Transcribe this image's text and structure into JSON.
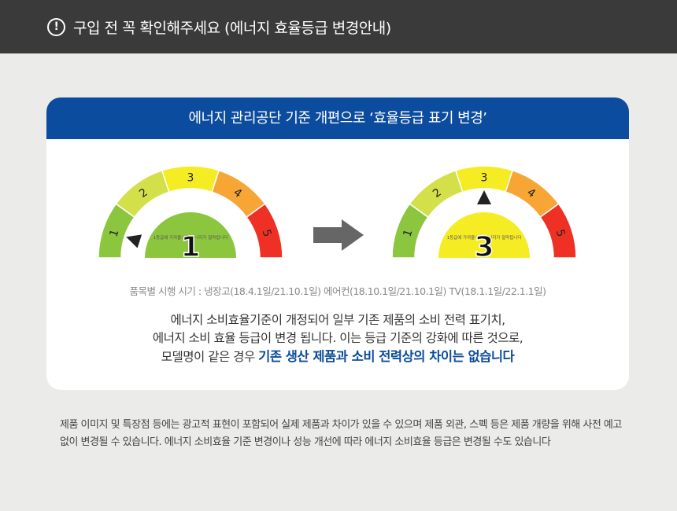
{
  "notice": {
    "icon": "exclamation-circle-icon",
    "title": "구입 전 꼭 확인해주세요 (에너지 효율등급 변경안내)"
  },
  "card": {
    "heading": "에너지 관리공단 기준 개편으로 ‘효율등급 표기 변경’",
    "gauge_before": {
      "grade": "1",
      "caption": "1등급에 가까울수록 에너지가 절약됩니다",
      "pointer_grade": 1
    },
    "gauge_after": {
      "grade": "3",
      "caption": "1등급에 가까울수록 에너지가 절약됩니다",
      "pointer_grade": 3
    },
    "segments": [
      "1",
      "2",
      "3",
      "4",
      "5"
    ],
    "segment_colors": [
      "#8cc63f",
      "#d4e04a",
      "#f6ec23",
      "#f7a535",
      "#ee3124"
    ],
    "arrow_icon": "arrow-right-icon",
    "period": "품목별 시행 시기 : 냉장고(18.4.1일/21.10.1일) 에어컨(18.10.1일/21.10.1일) TV(18.1.1일/22.1.1일)",
    "desc_line1": "에너지 소비효율기준이 개정되어 일부 기존 제품의 소비 전력 표기치,",
    "desc_line2": "에너지 소비 효율 등급이 변경 됩니다. 이는 등급 기준의 강화에 따른 것으로,",
    "desc_line3": "모델명이 같은 경우 ",
    "desc_emphasis": "기존 생산 제품과 소비 전력상의 차이는 없습니다"
  },
  "footnote": "제품 이미지 및 특장점 등에는 광고적 표현이 포함되어 실제 제품과 차이가 있을 수 있으며 제품 외관, 스펙 등은 제품 개량을 위해 사전 예고 없이 변경될 수 있습니다.  에너지 소비효율 기준 변경이나 성능 개선에 따라 에너지 소비효율 등급은 변경될 수도 있습니다"
}
